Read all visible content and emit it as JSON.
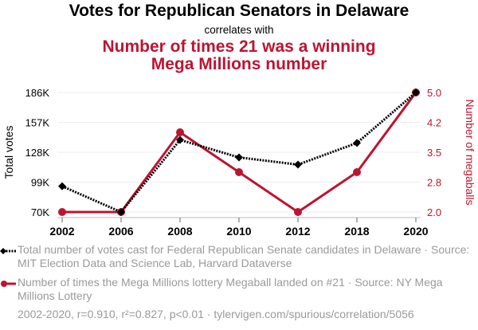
{
  "header": {
    "title": "Votes for Republican Senators in Delaware",
    "subtitle": "correlates with",
    "title2_line1": "Number of times 21 was a winning",
    "title2_line2": "Mega Millions number"
  },
  "colors": {
    "series1": "#000000",
    "series2": "#bd1431",
    "grid": "#eeeeee",
    "axis": "#999999",
    "muted_text": "#9a9a9a"
  },
  "legend": {
    "series1_text": "Total number of votes cast for Federal Republican Senate candidates in Delaware · Source: MIT Election Data and Science Lab, Harvard Dataverse",
    "series2_text": "Number of times the Mega Millions lottery Megaball landed on #21 · Source: NY Mega Millions Lottery",
    "stats": "2002-2020, r=0.910, r²=0.827, p<0.01 · tylervigen.com/spurious/correlation/5056"
  },
  "chart_data": {
    "type": "line",
    "categories": [
      "2002",
      "2006",
      "2008",
      "2010",
      "2012",
      "2018",
      "2020"
    ],
    "series": [
      {
        "name": "Total votes",
        "axis": "left",
        "style": "dotted",
        "marker": "diamond",
        "values": [
          95000,
          70000,
          140000,
          123000,
          116000,
          137000,
          186000
        ]
      },
      {
        "name": "Number of megaballs",
        "axis": "right",
        "style": "solid",
        "marker": "circle",
        "values": [
          2,
          2,
          4,
          3,
          2,
          3,
          5
        ]
      }
    ],
    "ylabel": "Total votes",
    "y2label": "Number of megaballs",
    "ylim": [
      70000,
      186000
    ],
    "y2lim": [
      2.0,
      5.0
    ],
    "yticks": [
      "70K",
      "99K",
      "128K",
      "157K",
      "186K"
    ],
    "y2ticks": [
      "2.0",
      "2.8",
      "3.5",
      "4.2",
      "5.0"
    ],
    "grid": true,
    "legend_position": "bottom"
  }
}
